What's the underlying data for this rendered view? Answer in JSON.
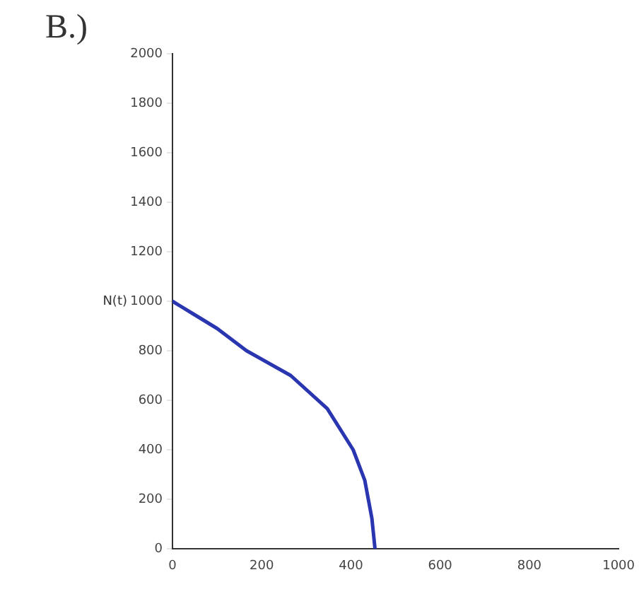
{
  "chart_data": {
    "type": "line",
    "title": "B.)",
    "ylabel": "N(t)",
    "x": [
      0,
      50,
      100,
      166,
      265,
      347,
      405,
      431,
      447,
      454
    ],
    "series": [
      {
        "color": "#2a35b0",
        "values": [
          1000,
          945,
          890,
          800,
          700,
          566,
          400,
          277,
          123,
          0
        ]
      }
    ],
    "xlim": [
      0,
      1000
    ],
    "xticks": [
      0,
      200,
      400,
      600,
      800,
      1000
    ],
    "ylim": [
      0,
      2000
    ],
    "yticks": [
      0,
      200,
      400,
      600,
      800,
      1000,
      1200,
      1400,
      1600,
      1800,
      2000
    ],
    "grid": false,
    "legend": false,
    "marker": "none",
    "line_style": "solid"
  }
}
